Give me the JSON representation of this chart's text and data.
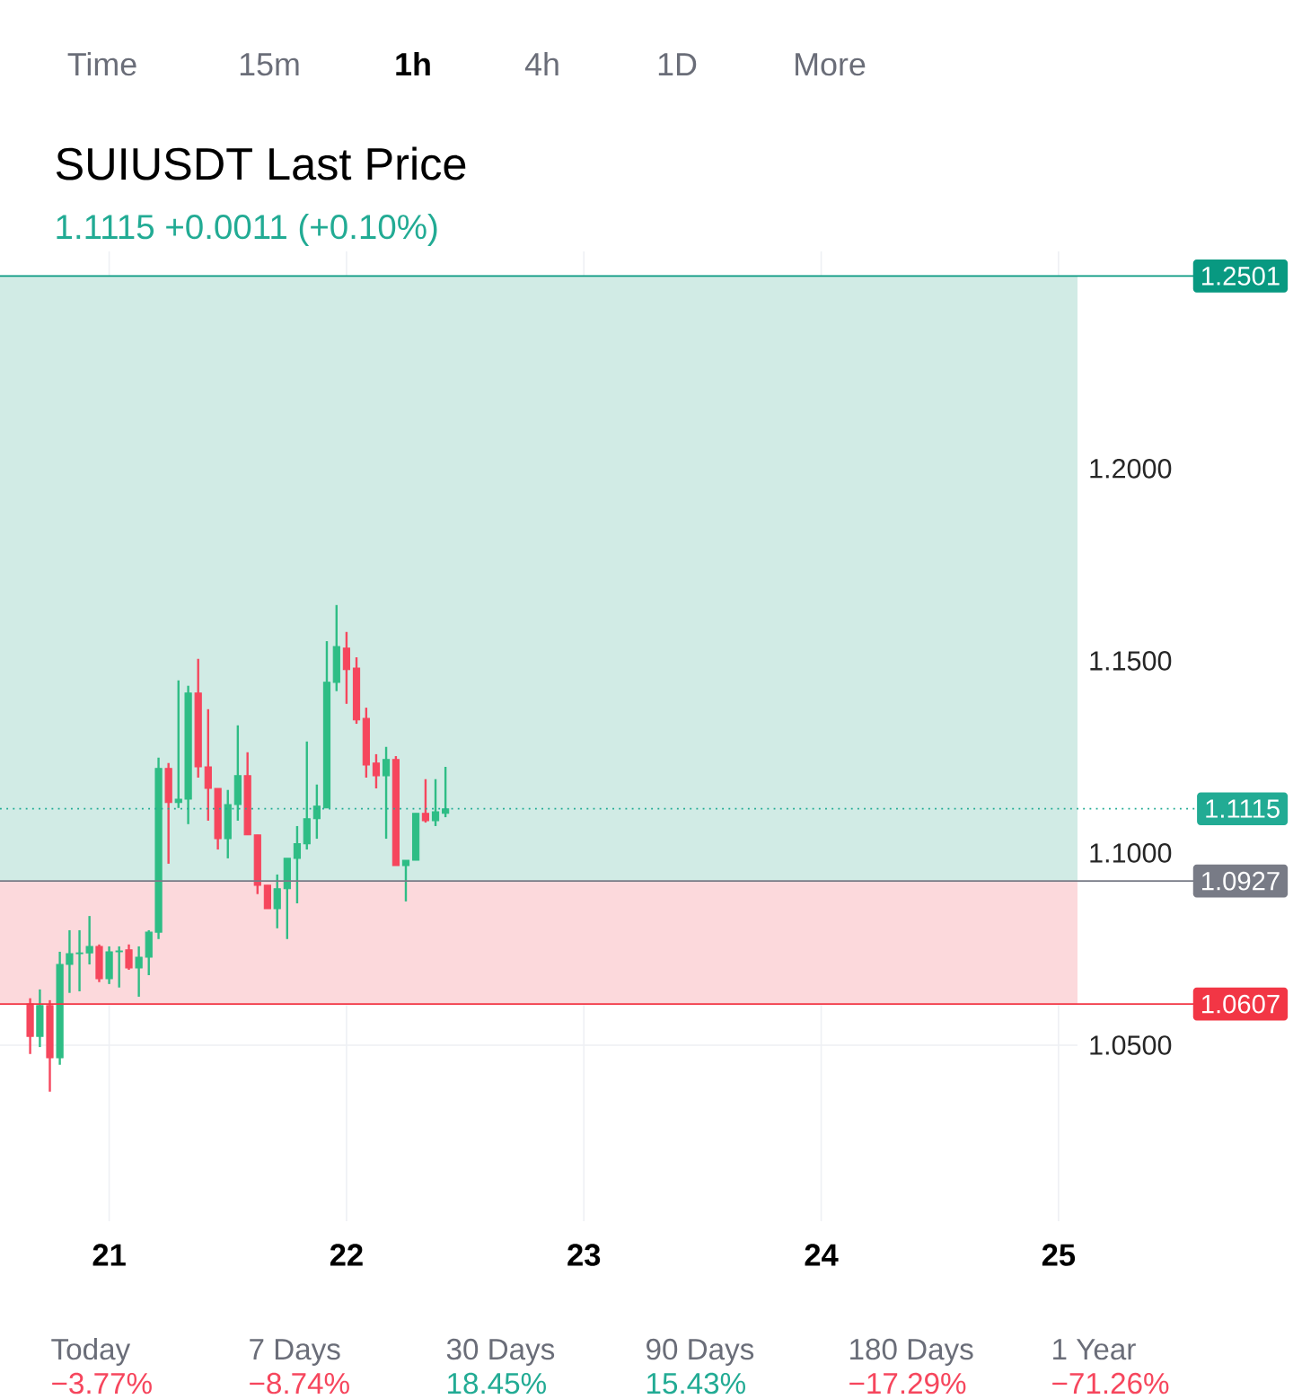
{
  "chart_data": {
    "type": "candlestick",
    "title": "SUIUSDT Last Price",
    "subtitle": "1.1115  +0.0011 (+0.10%)",
    "x": [
      20.667,
      20.708,
      20.75,
      20.792,
      20.833,
      20.875,
      20.917,
      20.958,
      21.0,
      21.042,
      21.083,
      21.125,
      21.167,
      21.208,
      21.25,
      21.292,
      21.333,
      21.375,
      21.417,
      21.458,
      21.5,
      21.542,
      21.583,
      21.625,
      21.667,
      21.708,
      21.75,
      21.792,
      21.833,
      21.875,
      21.917,
      21.958,
      22.0,
      22.042,
      22.083,
      22.125,
      22.167,
      22.208,
      22.25,
      22.292,
      22.333,
      22.375,
      22.417
    ],
    "ohlc": [
      [
        1.0607,
        1.0622,
        1.0477,
        1.0523
      ],
      [
        1.0523,
        1.0645,
        1.0495,
        1.0603
      ],
      [
        1.0603,
        1.0617,
        1.0379,
        1.0467
      ],
      [
        1.0467,
        1.0743,
        1.0449,
        1.071
      ],
      [
        1.071,
        1.0799,
        1.0636,
        1.0738
      ],
      [
        1.0738,
        1.0799,
        1.064,
        1.074
      ],
      [
        1.074,
        1.0836,
        1.071,
        1.0757
      ],
      [
        1.0757,
        1.0762,
        1.0664,
        1.0673
      ],
      [
        1.0673,
        1.0757,
        1.0659,
        1.0743
      ],
      [
        1.0743,
        1.0757,
        1.065,
        1.0745
      ],
      [
        1.0748,
        1.0762,
        1.0696,
        1.0701
      ],
      [
        1.0701,
        1.0757,
        1.0626,
        1.0729
      ],
      [
        1.0729,
        1.0799,
        1.0682,
        1.0794
      ],
      [
        1.0794,
        1.1248,
        1.0776,
        1.122
      ],
      [
        1.122,
        1.1234,
        1.0972,
        1.1131
      ],
      [
        1.1131,
        1.1449,
        1.1117,
        1.114
      ],
      [
        1.114,
        1.1435,
        1.1075,
        1.1416
      ],
      [
        1.1416,
        1.1505,
        1.1196,
        1.1224
      ],
      [
        1.1224,
        1.1374,
        1.1084,
        1.1168
      ],
      [
        1.1168,
        1.1168,
        1.1009,
        1.1037
      ],
      [
        1.1037,
        1.1164,
        1.0986,
        1.1126
      ],
      [
        1.1126,
        1.1332,
        1.1084,
        1.1201
      ],
      [
        1.1201,
        1.1262,
        1.1047,
        1.1047
      ],
      [
        1.1047,
        1.1047,
        1.0893,
        1.0916
      ],
      [
        1.0916,
        1.0916,
        1.0855,
        1.0855
      ],
      [
        1.0855,
        1.0944,
        1.0804,
        1.0907
      ],
      [
        1.0907,
        1.0986,
        1.0776,
        1.0986
      ],
      [
        1.0986,
        1.107,
        1.0869,
        1.1024
      ],
      [
        1.1024,
        1.129,
        1.1009,
        1.1089
      ],
      [
        1.1089,
        1.1178,
        1.1037,
        1.1122
      ],
      [
        1.1117,
        1.1551,
        1.1117,
        1.1444
      ],
      [
        1.1444,
        1.1645,
        1.1421,
        1.1537
      ],
      [
        1.1533,
        1.1575,
        1.1388,
        1.1477
      ],
      [
        1.1481,
        1.1509,
        1.1336,
        1.1346
      ],
      [
        1.135,
        1.1378,
        1.1196,
        1.1229
      ],
      [
        1.1234,
        1.1257,
        1.1168,
        1.1201
      ],
      [
        1.1201,
        1.1276,
        1.1037,
        1.1243
      ],
      [
        1.1243,
        1.1252,
        1.0967,
        1.0967
      ],
      [
        1.0967,
        1.0981,
        1.0874,
        1.0981
      ],
      [
        1.0981,
        1.1103,
        1.0981,
        1.1103
      ],
      [
        1.1103,
        1.1192,
        1.1079,
        1.1084
      ],
      [
        1.1084,
        1.1192,
        1.107,
        1.1107
      ],
      [
        1.1103,
        1.1224,
        1.1093,
        1.1115
      ]
    ],
    "xlim": [
      20.54,
      25.08
    ],
    "xticks": [
      21,
      22,
      23,
      24,
      25
    ],
    "ylim": [
      1.0042,
      1.2565
    ],
    "yticks": [
      {
        "value": 1.05,
        "label": "1.0500"
      },
      {
        "value": 1.1,
        "label": "1.1000"
      },
      {
        "value": 1.15,
        "label": "1.1500"
      },
      {
        "value": 1.2,
        "label": "1.2000"
      }
    ],
    "grid": true,
    "bands": [
      {
        "axis": "y",
        "from": 1.0927,
        "to": 1.2501,
        "color": "#d1ebe5"
      },
      {
        "axis": "y",
        "from": 1.0607,
        "to": 1.0927,
        "color": "#fcd9dc"
      }
    ],
    "ref_lines": [
      {
        "axis": "y",
        "value": 1.2501,
        "label": "1.2501",
        "color": "#089981",
        "line_style": "solid"
      },
      {
        "axis": "y",
        "value": 1.1115,
        "label": "1.1115",
        "color": "#22ab94",
        "line_style": "dotted"
      },
      {
        "axis": "y",
        "value": 1.0927,
        "label": "1.0927",
        "color": "#787b86",
        "line_style": "solid"
      },
      {
        "axis": "y",
        "value": 1.0607,
        "label": "1.0607",
        "color": "#f23645",
        "line_style": "solid"
      }
    ],
    "annotations": [
      "Time",
      "15m",
      "1h",
      "4h",
      "1D",
      "More",
      "Today",
      "−3.77%",
      "7 Days",
      "−8.74%",
      "30 Days",
      "18.45%",
      "90 Days",
      "15.43%",
      "180 Days",
      "−17.29%",
      "1 Year",
      "−71.26%"
    ]
  }
}
